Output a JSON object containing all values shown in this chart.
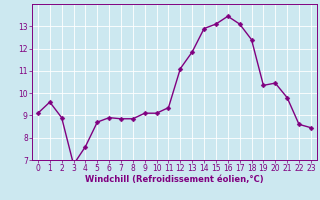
{
  "x": [
    0,
    1,
    2,
    3,
    4,
    5,
    6,
    7,
    8,
    9,
    10,
    11,
    12,
    13,
    14,
    15,
    16,
    17,
    18,
    19,
    20,
    21,
    22,
    23
  ],
  "y": [
    9.1,
    9.6,
    8.9,
    6.8,
    7.6,
    8.7,
    8.9,
    8.85,
    8.85,
    9.1,
    9.1,
    9.35,
    11.1,
    11.85,
    12.9,
    13.1,
    13.45,
    13.1,
    12.4,
    10.35,
    10.45,
    9.8,
    8.6,
    8.45
  ],
  "line_color": "#800080",
  "marker_color": "#800080",
  "bg_color": "#cce8f0",
  "grid_color": "#ffffff",
  "xlabel": "Windchill (Refroidissement éolien,°C)",
  "ylim": [
    7,
    14
  ],
  "xlim": [
    -0.5,
    23.5
  ],
  "yticks": [
    7,
    8,
    9,
    10,
    11,
    12,
    13
  ],
  "xticks": [
    0,
    1,
    2,
    3,
    4,
    5,
    6,
    7,
    8,
    9,
    10,
    11,
    12,
    13,
    14,
    15,
    16,
    17,
    18,
    19,
    20,
    21,
    22,
    23
  ],
  "tick_color": "#800080",
  "label_color": "#800080",
  "spine_color": "#800080",
  "line_width": 1.0,
  "marker_size": 2.5,
  "tick_fontsize": 5.5,
  "xlabel_fontsize": 6.0
}
